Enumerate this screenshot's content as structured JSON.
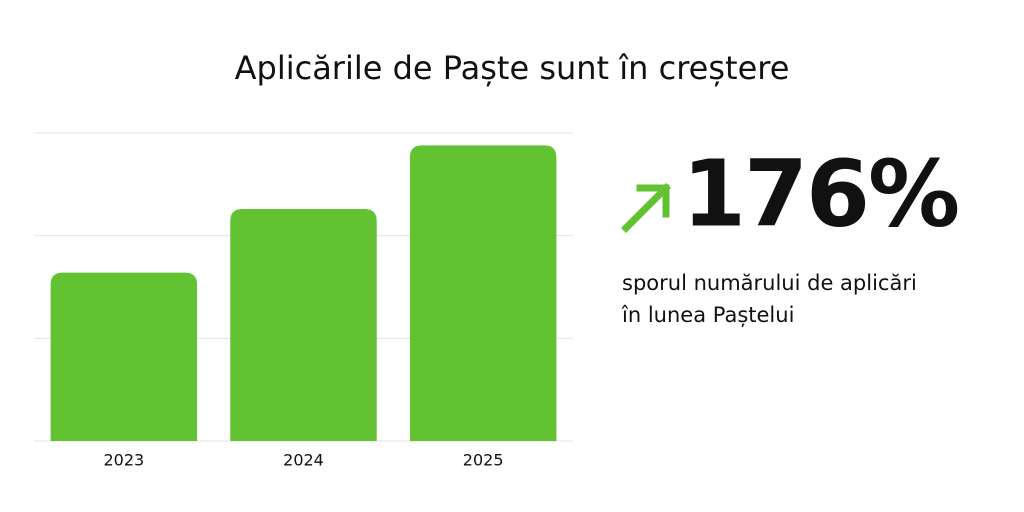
{
  "chart_data": {
    "type": "bar",
    "title": "Aplicările de Paște sunt în creștere",
    "categories": [
      "2023",
      "2024",
      "2025"
    ],
    "values": [
      1.64,
      2.26,
      2.88
    ],
    "color": "#62c232",
    "ylim": [
      0,
      3
    ],
    "yticks": [
      0,
      1,
      2,
      3
    ],
    "grid": true,
    "highlight": "176%",
    "caption": [
      "sporul numărului de aplicări",
      "în lunea Paștelui"
    ]
  }
}
